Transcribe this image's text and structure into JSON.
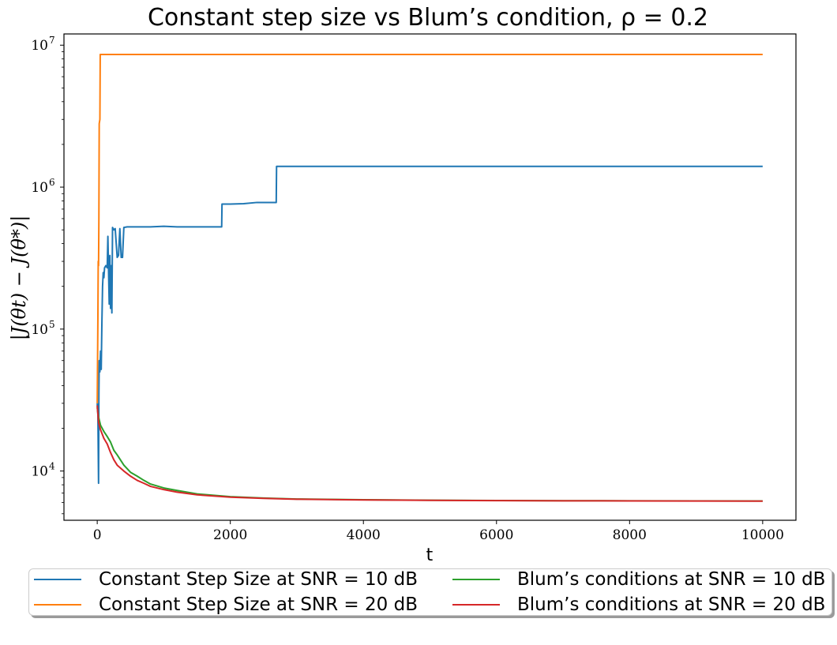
{
  "chart_data": {
    "type": "line",
    "title": "Constant step size vs Blum’s condition, ρ = 0.2",
    "xlabel": "t",
    "ylabel": "|J(θt) − J(θ*)|",
    "xlim": [
      -500,
      10500
    ],
    "ylim": [
      4500,
      12000000
    ],
    "yscale": "log",
    "grid": false,
    "legend_placement": "below plot, two columns, with shadow",
    "x_ticks": [
      0,
      2000,
      4000,
      6000,
      8000,
      10000
    ],
    "x_tick_labels": [
      "0",
      "2000",
      "4000",
      "6000",
      "8000",
      "10000"
    ],
    "y_ticks": [
      10000,
      100000,
      1000000,
      10000000
    ],
    "y_tick_base": [
      "10",
      "10",
      "10",
      "10"
    ],
    "y_tick_exp": [
      "4",
      "5",
      "6",
      "7"
    ],
    "series": [
      {
        "name": "Constant Step Size at SNR = 10 dB",
        "color": "#1f77b4",
        "x": [
          0,
          10,
          20,
          25,
          30,
          40,
          50,
          60,
          70,
          80,
          90,
          100,
          110,
          130,
          150,
          160,
          180,
          190,
          200,
          210,
          220,
          230,
          240,
          250,
          270,
          300,
          320,
          340,
          360,
          380,
          400,
          450,
          600,
          800,
          1000,
          1200,
          1500,
          1870,
          1875,
          2000,
          2200,
          2400,
          2690,
          2695,
          4000,
          6000,
          8000,
          10000
        ],
        "y": [
          30000,
          25000,
          8200,
          35000,
          60000,
          50000,
          70000,
          52000,
          110000,
          200000,
          250000,
          230000,
          270000,
          280000,
          270000,
          450000,
          150000,
          330000,
          140000,
          280000,
          130000,
          520000,
          510000,
          500000,
          510000,
          320000,
          330000,
          510000,
          320000,
          320000,
          520000,
          525000,
          525000,
          525000,
          530000,
          525000,
          525000,
          525000,
          760000,
          760000,
          765000,
          780000,
          780000,
          1400000,
          1400000,
          1400000,
          1400000,
          1400000
        ]
      },
      {
        "name": "Constant Step Size at SNR = 20 dB",
        "color": "#ff7f0e",
        "x": [
          0,
          5,
          10,
          15,
          20,
          25,
          30,
          35,
          40,
          45,
          50,
          55,
          60,
          80,
          100,
          2000,
          4000,
          6000,
          8000,
          10000
        ],
        "y": [
          30000,
          60000,
          120000,
          300000,
          280000,
          600000,
          2800000,
          2900000,
          3000000,
          8600000,
          8600000,
          8600000,
          8600000,
          8600000,
          8600000,
          8600000,
          8600000,
          8600000,
          8600000,
          8600000
        ]
      },
      {
        "name": "Blum’s conditions at SNR = 10 dB",
        "color": "#2ca02c",
        "x": [
          0,
          20,
          50,
          100,
          150,
          200,
          250,
          300,
          400,
          500,
          600,
          700,
          800,
          1000,
          1200,
          1500,
          2000,
          2500,
          3000,
          4000,
          5000,
          6000,
          7000,
          8000,
          9000,
          10000
        ],
        "y": [
          28000,
          24000,
          21000,
          19000,
          17500,
          16000,
          14000,
          13000,
          11000,
          9800,
          9200,
          8600,
          8100,
          7600,
          7300,
          6900,
          6600,
          6450,
          6350,
          6280,
          6230,
          6200,
          6180,
          6170,
          6160,
          6150
        ]
      },
      {
        "name": "Blum’s conditions at SNR = 20 dB",
        "color": "#d62728",
        "x": [
          0,
          20,
          50,
          100,
          150,
          200,
          250,
          300,
          400,
          500,
          600,
          700,
          800,
          1000,
          1200,
          1500,
          2000,
          2500,
          3000,
          4000,
          5000,
          6000,
          7000,
          8000,
          9000,
          10000
        ],
        "y": [
          29000,
          22000,
          19500,
          17000,
          15500,
          13500,
          12000,
          11000,
          10000,
          9200,
          8600,
          8200,
          7800,
          7400,
          7100,
          6800,
          6550,
          6420,
          6330,
          6260,
          6220,
          6190,
          6170,
          6160,
          6150,
          6140
        ]
      }
    ]
  }
}
